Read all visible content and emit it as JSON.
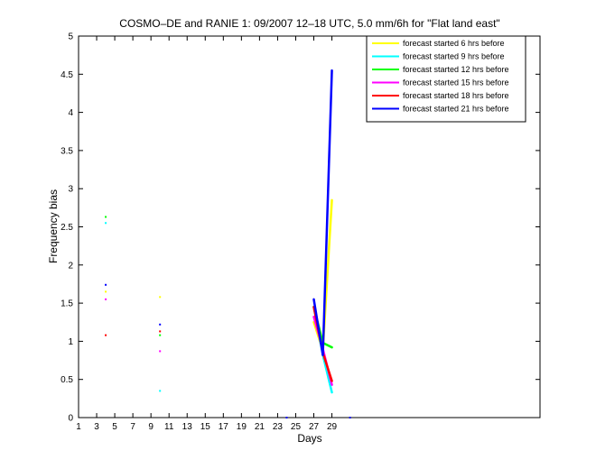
{
  "chart_data": {
    "type": "line",
    "title": "COSMO–DE and RANIE 1: 09/2007 12–18 UTC, 5.0 mm/6h for \"Flat land east\"",
    "xlabel": "Days",
    "ylabel": "Frequency bias",
    "xlim": [
      1,
      52
    ],
    "ylim": [
      0,
      5
    ],
    "xticks": [
      1,
      3,
      5,
      7,
      9,
      11,
      13,
      15,
      17,
      19,
      21,
      23,
      25,
      27,
      29
    ],
    "xtick_labels": [
      "1",
      "3",
      "5",
      "7",
      "9",
      "11",
      "13",
      "15",
      "17",
      "19",
      "21",
      "23",
      "25",
      "27",
      "29"
    ],
    "yticks": [
      0,
      0.5,
      1,
      1.5,
      2,
      2.5,
      3,
      3.5,
      4,
      4.5,
      5
    ],
    "ytick_labels": [
      "0",
      "0.5",
      "1",
      "1.5",
      "2",
      "2.5",
      "3",
      "3.5",
      "4",
      "4.5",
      "5"
    ],
    "grid": false,
    "legend_position": "top-right",
    "series": [
      {
        "name": "forecast started 6 hrs before",
        "color": "#ffff00",
        "points": [
          [
            4,
            1.65
          ],
          [
            10,
            1.58
          ],
          [
            24,
            0.0
          ],
          [
            27,
            1.25
          ],
          [
            28,
            0.88
          ],
          [
            29,
            2.85
          ],
          [
            31,
            0.0
          ]
        ]
      },
      {
        "name": "forecast started 9 hrs before",
        "color": "#00ffff",
        "points": [
          [
            4,
            2.55
          ],
          [
            10,
            0.35
          ],
          [
            27,
            1.45
          ],
          [
            28,
            0.82
          ],
          [
            29,
            0.33
          ]
        ]
      },
      {
        "name": "forecast started 12 hrs before",
        "color": "#00ff00",
        "points": [
          [
            4,
            2.63
          ],
          [
            10,
            1.08
          ],
          [
            27,
            1.45
          ],
          [
            28,
            0.98
          ],
          [
            29,
            0.92
          ]
        ]
      },
      {
        "name": "forecast started 15 hrs before",
        "color": "#ff00ff",
        "points": [
          [
            4,
            1.55
          ],
          [
            10,
            0.87
          ],
          [
            27,
            1.32
          ],
          [
            28,
            0.9
          ],
          [
            29,
            0.43
          ]
        ]
      },
      {
        "name": "forecast started 18 hrs before",
        "color": "#ff0000",
        "points": [
          [
            4,
            1.08
          ],
          [
            10,
            1.13
          ],
          [
            27,
            1.45
          ],
          [
            28,
            0.85
          ],
          [
            29,
            0.48
          ]
        ]
      },
      {
        "name": "forecast started 21 hrs before",
        "color": "#0000ff",
        "points": [
          [
            4,
            1.74
          ],
          [
            10,
            1.22
          ],
          [
            24,
            0.0
          ],
          [
            27,
            1.55
          ],
          [
            28,
            0.82
          ],
          [
            29,
            4.55
          ],
          [
            31,
            0.0
          ]
        ]
      }
    ]
  }
}
